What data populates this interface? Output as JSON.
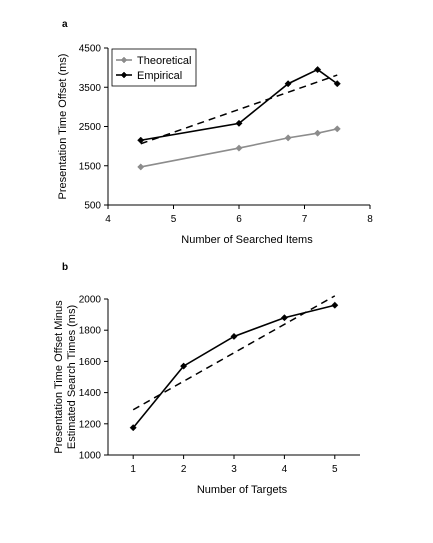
{
  "chart_data": [
    {
      "panel": "a",
      "type": "line",
      "xlabel": "Number of Searched Items",
      "ylabel": "Presentation Time Offset (ms)",
      "xlim": [
        4,
        8
      ],
      "ylim": [
        500,
        4500
      ],
      "x_ticks": [
        4,
        5,
        6,
        7,
        8
      ],
      "y_ticks": [
        500,
        1500,
        2500,
        3500,
        4500
      ],
      "grid": false,
      "legend_position": "top-left",
      "series": [
        {
          "name": "Theoretical",
          "color": "#8c8c8c",
          "marker": "diamond",
          "x": [
            4.5,
            6.0,
            6.75,
            7.2,
            7.5
          ],
          "y": [
            1470,
            1950,
            2210,
            2330,
            2440
          ]
        },
        {
          "name": "Empirical",
          "color": "#000000",
          "marker": "diamond",
          "x": [
            4.5,
            6.0,
            6.75,
            7.2,
            7.5
          ],
          "y": [
            2150,
            2580,
            3590,
            3950,
            3590
          ]
        }
      ],
      "trendline": {
        "style": "dashed",
        "color": "#000000",
        "x": [
          4.5,
          7.5
        ],
        "y": [
          2060,
          3810
        ]
      }
    },
    {
      "panel": "b",
      "type": "line",
      "xlabel": "Number of Targets",
      "ylabel": "Presentation Time Offset Minus Estimated Search Times (ms)",
      "ylabel_lines": [
        "Presentation Time Offset Minus",
        "Estimated Search Times (ms)"
      ],
      "xlim": [
        0.5,
        5.5
      ],
      "ylim": [
        1000,
        2000
      ],
      "x_ticks": [
        1,
        2,
        3,
        4,
        5
      ],
      "y_ticks": [
        1000,
        1200,
        1400,
        1600,
        1800,
        2000
      ],
      "grid": false,
      "series": [
        {
          "color": "#000000",
          "marker": "diamond",
          "x": [
            1,
            2,
            3,
            4,
            5
          ],
          "y": [
            1175,
            1570,
            1760,
            1880,
            1960
          ]
        }
      ],
      "trendline": {
        "style": "dashed",
        "color": "#000000",
        "x": [
          1,
          5
        ],
        "y": [
          1290,
          2020
        ]
      }
    }
  ]
}
